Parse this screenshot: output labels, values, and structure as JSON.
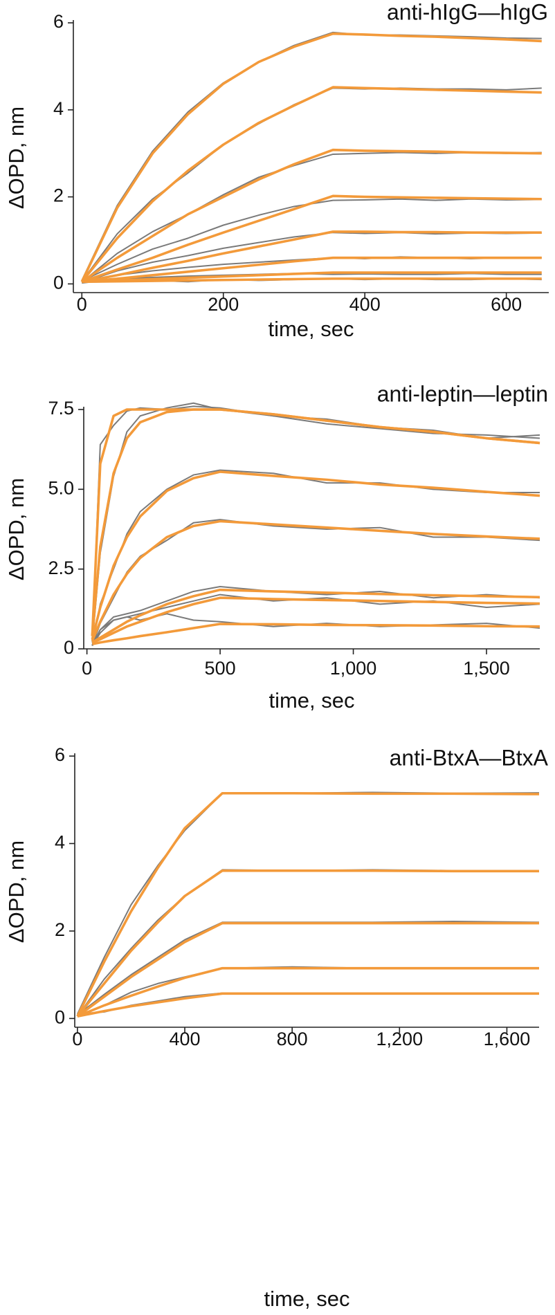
{
  "chart_data": [
    {
      "type": "line",
      "title": "anti-hIgG—hIgG",
      "xlabel": "time, sec",
      "ylabel": "ΔOPD, nm",
      "xlim": [
        -12,
        660
      ],
      "ylim": [
        -0.2,
        6
      ],
      "xticks": [
        0,
        200,
        400,
        600
      ],
      "yticks": [
        0,
        2,
        4,
        6
      ],
      "x": [
        0,
        50,
        100,
        150,
        200,
        250,
        300,
        355,
        400,
        450,
        500,
        550,
        600,
        650
      ],
      "series": [
        {
          "color": "#7a7a7a",
          "values": [
            0.08,
            1.8,
            3.05,
            3.95,
            4.62,
            5.1,
            5.48,
            5.78,
            5.72,
            5.72,
            5.7,
            5.68,
            5.65,
            5.64
          ]
        },
        {
          "color": "#7a7a7a",
          "values": [
            0.06,
            1.15,
            1.95,
            2.55,
            3.2,
            3.68,
            4.12,
            4.5,
            4.48,
            4.5,
            4.48,
            4.48,
            4.46,
            4.5
          ]
        },
        {
          "color": "#7a7a7a",
          "values": [
            0.04,
            0.7,
            1.2,
            1.6,
            2.05,
            2.45,
            2.72,
            2.98,
            3.0,
            3.02,
            3.0,
            3.02,
            3.0,
            3.02
          ]
        },
        {
          "color": "#7a7a7a",
          "values": [
            0.07,
            0.45,
            0.8,
            1.05,
            1.35,
            1.58,
            1.78,
            1.92,
            1.93,
            1.95,
            1.92,
            1.95,
            1.93,
            1.94
          ]
        },
        {
          "color": "#7a7a7a",
          "values": [
            0.03,
            0.3,
            0.5,
            0.65,
            0.82,
            0.95,
            1.08,
            1.18,
            1.16,
            1.18,
            1.15,
            1.17,
            1.16,
            1.17
          ]
        },
        {
          "color": "#7a7a7a",
          "values": [
            0.06,
            0.2,
            0.3,
            0.38,
            0.45,
            0.5,
            0.55,
            0.6,
            0.58,
            0.62,
            0.6,
            0.58,
            0.6,
            0.6
          ]
        },
        {
          "color": "#7a7a7a",
          "values": [
            0.02,
            0.12,
            0.15,
            0.18,
            0.2,
            0.22,
            0.24,
            0.22,
            0.23,
            0.22,
            0.22,
            0.24,
            0.22,
            0.22
          ]
        },
        {
          "color": "#7a7a7a",
          "values": [
            0.04,
            0.05,
            0.08,
            0.05,
            0.1,
            0.08,
            0.1,
            0.12,
            0.1,
            0.12,
            0.1,
            0.1,
            0.12,
            0.1
          ]
        },
        {
          "color": "#f39a3a",
          "values": [
            0.05,
            1.75,
            3.0,
            3.9,
            4.6,
            5.1,
            5.45,
            5.75,
            5.73,
            5.7,
            5.68,
            5.65,
            5.62,
            5.58
          ]
        },
        {
          "color": "#f39a3a",
          "values": [
            0.05,
            1.05,
            1.9,
            2.6,
            3.2,
            3.7,
            4.1,
            4.52,
            4.5,
            4.48,
            4.46,
            4.44,
            4.42,
            4.4
          ]
        },
        {
          "color": "#f39a3a",
          "values": [
            0.05,
            0.6,
            1.1,
            1.6,
            2.0,
            2.4,
            2.75,
            3.08,
            3.06,
            3.05,
            3.04,
            3.02,
            3.01,
            3.0
          ]
        },
        {
          "color": "#f39a3a",
          "values": [
            0.05,
            0.33,
            0.6,
            0.9,
            1.18,
            1.45,
            1.72,
            2.02,
            2.0,
            1.99,
            1.98,
            1.97,
            1.96,
            1.95
          ]
        },
        {
          "color": "#f39a3a",
          "values": [
            0.05,
            0.2,
            0.37,
            0.53,
            0.7,
            0.86,
            1.02,
            1.2,
            1.2,
            1.19,
            1.19,
            1.18,
            1.18,
            1.18
          ]
        },
        {
          "color": "#f39a3a",
          "values": [
            0.05,
            0.12,
            0.2,
            0.28,
            0.36,
            0.44,
            0.52,
            0.6,
            0.6,
            0.6,
            0.6,
            0.6,
            0.6,
            0.6
          ]
        },
        {
          "color": "#f39a3a",
          "values": [
            0.05,
            0.08,
            0.11,
            0.14,
            0.17,
            0.2,
            0.23,
            0.26,
            0.26,
            0.26,
            0.26,
            0.26,
            0.26,
            0.26
          ]
        },
        {
          "color": "#f39a3a",
          "values": [
            0.05,
            0.06,
            0.07,
            0.08,
            0.09,
            0.1,
            0.11,
            0.12,
            0.12,
            0.12,
            0.12,
            0.12,
            0.12,
            0.12
          ]
        }
      ]
    },
    {
      "type": "line",
      "title": "anti-leptin—leptin",
      "xlabel": "time, sec",
      "ylabel": "ΔOPD, nm",
      "xlim": [
        -12,
        1700
      ],
      "ylim": [
        0,
        7.5
      ],
      "xticks": [
        0,
        500,
        {
          "value": 1000,
          "label": "1,000"
        },
        {
          "value": 1500,
          "label": "1,500"
        }
      ],
      "yticks": [
        0,
        2.5,
        {
          "value": 5,
          "label": "5.0"
        },
        7.5
      ],
      "x": [
        20,
        50,
        100,
        150,
        200,
        300,
        400,
        500,
        700,
        900,
        1100,
        1300,
        1500,
        1700
      ],
      "series": [
        {
          "color": "#7a7a7a",
          "values": [
            0.3,
            6.4,
            7.0,
            7.45,
            7.55,
            7.5,
            7.6,
            7.55,
            7.3,
            7.2,
            6.95,
            6.85,
            6.6,
            6.7
          ]
        },
        {
          "color": "#7a7a7a",
          "values": [
            0.2,
            3.0,
            5.4,
            6.8,
            7.3,
            7.55,
            7.7,
            7.5,
            7.3,
            7.05,
            6.9,
            6.75,
            6.7,
            6.6
          ]
        },
        {
          "color": "#7a7a7a",
          "values": [
            0.1,
            1.4,
            2.5,
            3.6,
            4.3,
            5.0,
            5.45,
            5.6,
            5.5,
            5.2,
            5.2,
            5.0,
            4.9,
            4.9
          ]
        },
        {
          "color": "#7a7a7a",
          "values": [
            0.1,
            0.8,
            1.6,
            2.4,
            2.9,
            3.4,
            3.95,
            4.05,
            3.85,
            3.75,
            3.8,
            3.5,
            3.5,
            3.4
          ]
        },
        {
          "color": "#7a7a7a",
          "values": [
            0.1,
            0.6,
            1.0,
            1.1,
            1.2,
            1.5,
            1.8,
            1.95,
            1.8,
            1.7,
            1.8,
            1.6,
            1.7,
            1.6
          ]
        },
        {
          "color": "#7a7a7a",
          "values": [
            0.1,
            0.5,
            0.9,
            1.0,
            1.1,
            1.3,
            1.5,
            1.7,
            1.5,
            1.6,
            1.4,
            1.5,
            1.3,
            1.4
          ]
        },
        {
          "color": "#7a7a7a",
          "values": [
            0.1,
            0.6,
            0.9,
            1.0,
            0.9,
            1.1,
            0.9,
            0.85,
            0.7,
            0.8,
            0.7,
            0.75,
            0.8,
            0.65
          ]
        },
        {
          "color": "#f39a3a",
          "values": [
            0.4,
            5.8,
            7.3,
            7.5,
            7.5,
            7.5,
            7.5,
            7.5,
            7.35,
            7.15,
            6.95,
            6.8,
            6.6,
            6.45
          ]
        },
        {
          "color": "#f39a3a",
          "values": [
            0.4,
            3.2,
            5.5,
            6.6,
            7.1,
            7.42,
            7.5,
            7.5,
            7.35,
            7.15,
            6.95,
            6.8,
            6.6,
            6.45
          ]
        },
        {
          "color": "#f39a3a",
          "values": [
            0.3,
            1.3,
            2.6,
            3.5,
            4.15,
            4.95,
            5.35,
            5.55,
            5.42,
            5.3,
            5.15,
            5.05,
            4.92,
            4.8
          ]
        },
        {
          "color": "#f39a3a",
          "values": [
            0.25,
            0.85,
            1.7,
            2.35,
            2.85,
            3.5,
            3.85,
            4.0,
            3.9,
            3.8,
            3.7,
            3.6,
            3.52,
            3.45
          ]
        },
        {
          "color": "#f39a3a",
          "values": [
            0.2,
            0.35,
            0.6,
            0.85,
            1.05,
            1.4,
            1.65,
            1.85,
            1.8,
            1.76,
            1.72,
            1.68,
            1.65,
            1.62
          ]
        },
        {
          "color": "#f39a3a",
          "values": [
            0.2,
            0.3,
            0.5,
            0.7,
            0.85,
            1.15,
            1.4,
            1.6,
            1.56,
            1.53,
            1.5,
            1.47,
            1.44,
            1.42
          ]
        },
        {
          "color": "#f39a3a",
          "values": [
            0.15,
            0.2,
            0.27,
            0.33,
            0.4,
            0.52,
            0.65,
            0.78,
            0.77,
            0.75,
            0.74,
            0.73,
            0.71,
            0.7
          ]
        }
      ]
    },
    {
      "type": "line",
      "title": "anti-BtxA—BtxA",
      "xlabel": "time, sec",
      "ylabel": "ΔOPD, nm",
      "xlim": [
        -10,
        1720
      ],
      "ylim": [
        -0.2,
        6
      ],
      "xticks": [
        0,
        400,
        800,
        {
          "value": 1200,
          "label": "1,200"
        },
        {
          "value": 1600,
          "label": "1,600"
        }
      ],
      "yticks": [
        0,
        2,
        4,
        6
      ],
      "x": [
        0,
        100,
        200,
        300,
        400,
        540,
        800,
        1100,
        1400,
        1720
      ],
      "series": [
        {
          "color": "#7a7a7a",
          "values": [
            0.1,
            1.4,
            2.6,
            3.5,
            4.3,
            5.15,
            5.15,
            5.17,
            5.15,
            5.16
          ]
        },
        {
          "color": "#7a7a7a",
          "values": [
            0.05,
            0.9,
            1.6,
            2.25,
            2.8,
            3.4,
            3.38,
            3.4,
            3.38,
            3.37
          ]
        },
        {
          "color": "#7a7a7a",
          "values": [
            0.08,
            0.55,
            1.0,
            1.4,
            1.8,
            2.2,
            2.2,
            2.2,
            2.22,
            2.2
          ]
        },
        {
          "color": "#7a7a7a",
          "values": [
            0.05,
            0.3,
            0.6,
            0.8,
            0.95,
            1.15,
            1.18,
            1.15,
            1.15,
            1.15
          ]
        },
        {
          "color": "#7a7a7a",
          "values": [
            0.1,
            0.15,
            0.3,
            0.4,
            0.5,
            0.58,
            0.58,
            0.57,
            0.58,
            0.58
          ]
        },
        {
          "color": "#f39a3a",
          "values": [
            0.05,
            1.3,
            2.45,
            3.45,
            4.35,
            5.15,
            5.15,
            5.14,
            5.14,
            5.13
          ]
        },
        {
          "color": "#f39a3a",
          "values": [
            0.05,
            0.8,
            1.55,
            2.2,
            2.8,
            3.38,
            3.38,
            3.38,
            3.37,
            3.37
          ]
        },
        {
          "color": "#f39a3a",
          "values": [
            0.05,
            0.5,
            0.95,
            1.35,
            1.75,
            2.18,
            2.18,
            2.18,
            2.18,
            2.18
          ]
        },
        {
          "color": "#f39a3a",
          "values": [
            0.05,
            0.3,
            0.52,
            0.73,
            0.93,
            1.15,
            1.15,
            1.15,
            1.15,
            1.15
          ]
        },
        {
          "color": "#f39a3a",
          "values": [
            0.05,
            0.17,
            0.28,
            0.37,
            0.46,
            0.57,
            0.57,
            0.57,
            0.57,
            0.57
          ]
        }
      ]
    }
  ]
}
